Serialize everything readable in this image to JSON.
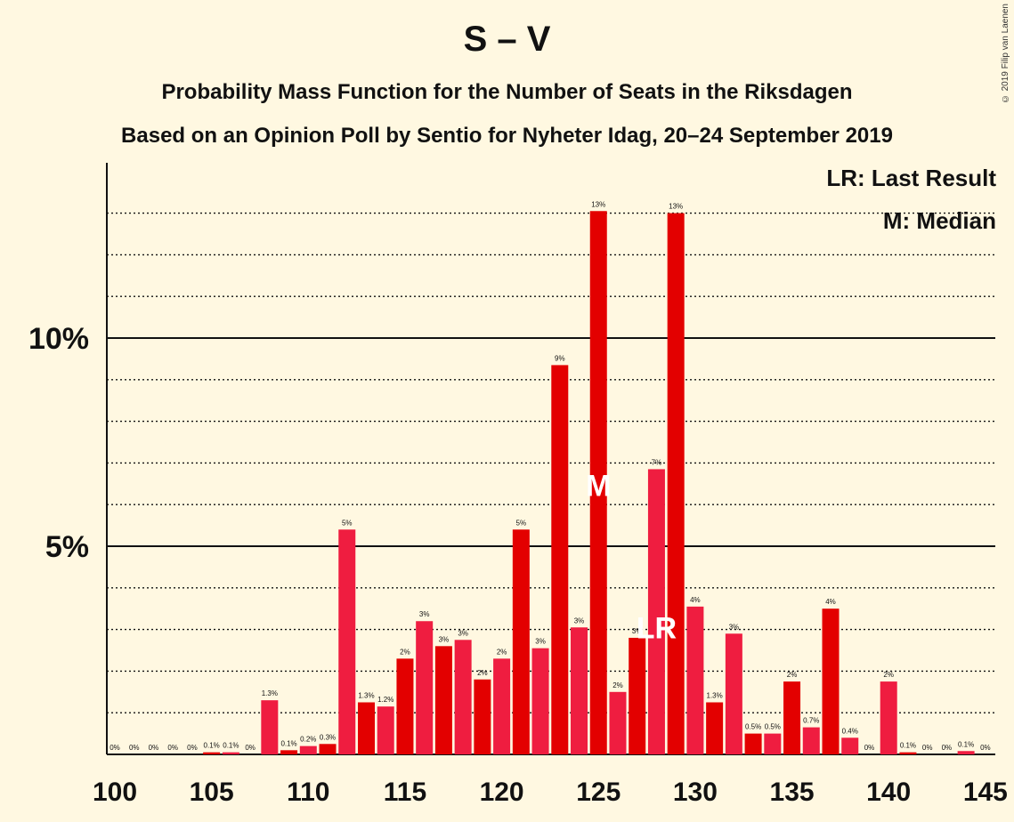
{
  "header": {
    "title": "S – V",
    "subtitle1": "Probability Mass Function for the Number of Seats in the Riksdagen",
    "subtitle2": "Based on an Opinion Poll by Sentio for Nyheter Idag, 20–24 September 2019"
  },
  "legend": {
    "last_result": "LR: Last Result",
    "median": "M: Median"
  },
  "copyright": "© 2019 Filip van Laenen",
  "chart_data": {
    "type": "bar",
    "x": [
      100,
      101,
      102,
      103,
      104,
      105,
      106,
      107,
      108,
      109,
      110,
      111,
      112,
      113,
      114,
      115,
      116,
      117,
      118,
      119,
      120,
      121,
      122,
      123,
      124,
      125,
      126,
      127,
      128,
      129,
      130,
      131,
      132,
      133,
      134,
      135,
      136,
      137,
      138,
      139,
      140,
      141,
      142,
      143,
      144,
      145
    ],
    "values": [
      0,
      0,
      0,
      0,
      0,
      0.05,
      0.05,
      0,
      1.3,
      0.1,
      0.2,
      0.25,
      5.4,
      1.25,
      1.15,
      2.3,
      3.2,
      2.6,
      2.75,
      1.8,
      2.3,
      5.4,
      2.55,
      9.35,
      3.05,
      13.05,
      1.5,
      2.8,
      6.85,
      13.0,
      3.55,
      1.25,
      2.9,
      0.5,
      0.5,
      1.75,
      0.65,
      3.5,
      0.4,
      0,
      1.75,
      0.05,
      0,
      0,
      0.08,
      0
    ],
    "labels": [
      "0%",
      "0%",
      "0%",
      "0%",
      "0%",
      "0.1%",
      "0.1%",
      "0%",
      "1.3%",
      "0.1%",
      "0.2%",
      "0.3%",
      "5%",
      "1.3%",
      "1.2%",
      "2%",
      "3%",
      "3%",
      "3%",
      "2%",
      "2%",
      "5%",
      "3%",
      "9%",
      "3%",
      "13%",
      "2%",
      "3%",
      "7%",
      "13%",
      "4%",
      "1.3%",
      "3%",
      "0.5%",
      "0.5%",
      "2%",
      "0.7%",
      "4%",
      "0.4%",
      "0%",
      "2%",
      "0.1%",
      "0%",
      "0%",
      "0.1%",
      "0%"
    ],
    "x_ticks": [
      "100",
      "105",
      "110",
      "115",
      "120",
      "125",
      "130",
      "135",
      "140",
      "145"
    ],
    "y_ticks": [
      {
        "value": 5,
        "label": "5%"
      },
      {
        "value": 10,
        "label": "10%"
      }
    ],
    "ylim": [
      0,
      14.2
    ],
    "xlim": [
      100,
      145
    ],
    "grid": true,
    "last_result_seat": 128,
    "median_seat": 125,
    "last_result_marker": "LR",
    "median_marker": "M",
    "colors": {
      "dark": "#E30000",
      "light": "#EF1D40",
      "background": "#FFF8E1"
    }
  }
}
